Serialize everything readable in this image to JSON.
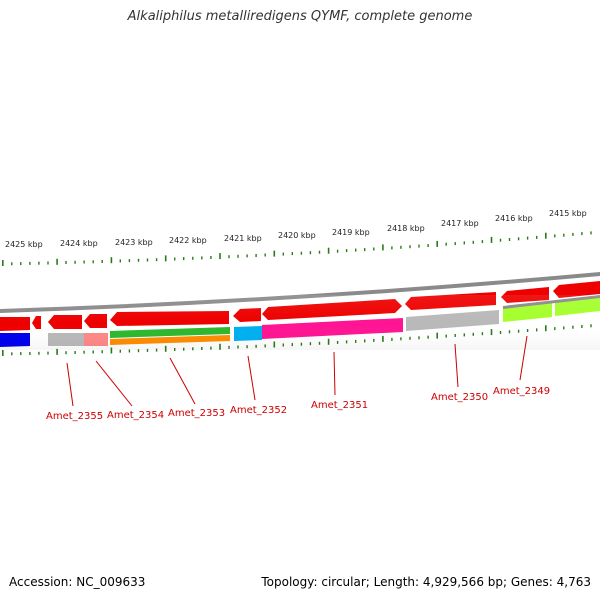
{
  "title": "Alkaliphilus metalliredigens QYMF, complete genome",
  "footer": {
    "accession": "Accession: NC_009633",
    "summary": "Topology: circular; Length: 4,929,566 bp; Genes: 4,763"
  },
  "scale_labels": [
    "2425 kbp",
    "2424 kbp",
    "2423 kbp",
    "2422 kbp",
    "2421 kbp",
    "2420 kbp",
    "2419 kbp",
    "2418 kbp",
    "2417 kbp",
    "2416 kbp",
    "2415 kbp"
  ],
  "colors": {
    "backbone": "#8a8a8a",
    "cds": "#ee0000",
    "tick": "#2a7a1a",
    "label": "#cc0000"
  },
  "genes": [
    {
      "id": "Amet_2355",
      "color": "#b9b9b9",
      "accent": "#ff8888"
    },
    {
      "id": "Amet_2354",
      "color": "#ff8888"
    },
    {
      "id": "Amet_2353",
      "color": "#2db82d",
      "accent": "#ff8c00"
    },
    {
      "id": "Amet_2352",
      "color": "#00b0f0"
    },
    {
      "id": "Amet_2351",
      "color": "#ff1493"
    },
    {
      "id": "Amet_2350",
      "color": "#b9b9b9"
    },
    {
      "id": "Amet_2349",
      "color": "#a4ff2a"
    }
  ]
}
